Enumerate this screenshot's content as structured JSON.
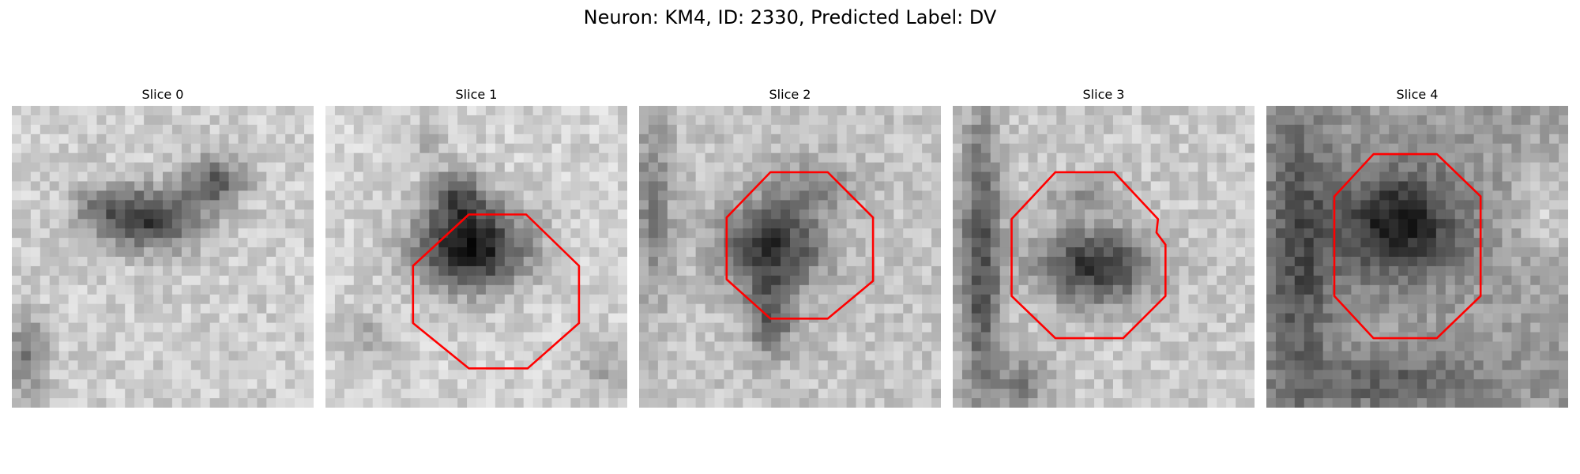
{
  "figure": {
    "title": "Neuron: KM4, ID: 2330, Predicted Label: DV"
  },
  "panels": [
    {
      "title": "Slice 0",
      "contour": false
    },
    {
      "title": "Slice 1",
      "contour": true
    },
    {
      "title": "Slice 2",
      "contour": true
    },
    {
      "title": "Slice 3",
      "contour": true
    },
    {
      "title": "Slice 4",
      "contour": true
    }
  ],
  "colors": {
    "contour": "#ff0000",
    "background": "#ffffff"
  },
  "colormap": "grayscale"
}
